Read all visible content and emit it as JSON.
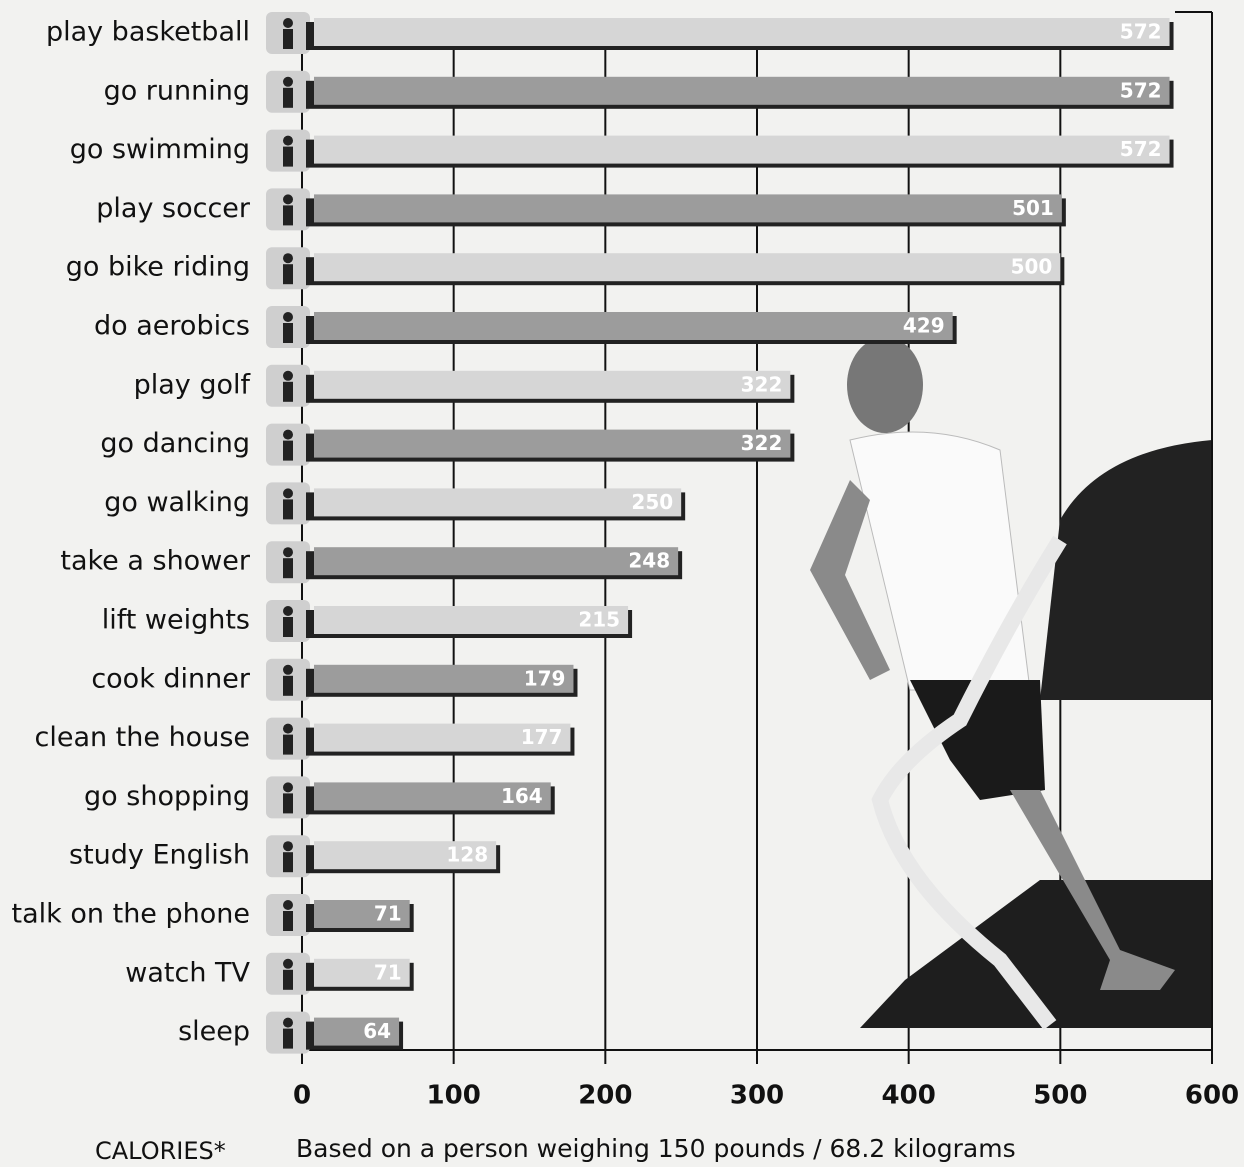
{
  "chart_data": {
    "type": "barh",
    "categories": [
      "play basketball",
      "go running",
      "go swimming",
      "play soccer",
      "go bike riding",
      "do aerobics",
      "play golf",
      "go dancing",
      "go walking",
      "take a shower",
      "lift weights",
      "cook dinner",
      "clean the house",
      "go shopping",
      "study English",
      "talk on the phone",
      "watch TV",
      "sleep"
    ],
    "values": [
      572,
      572,
      572,
      501,
      500,
      429,
      322,
      322,
      250,
      248,
      215,
      179,
      177,
      164,
      128,
      71,
      71,
      64
    ],
    "colors": [
      "#d6d6d6",
      "#9c9c9c"
    ],
    "xlim": [
      0,
      600
    ],
    "xticks": [
      0,
      100,
      200,
      300,
      400,
      500,
      600
    ],
    "grid": true,
    "xlabel": "CALORIES*",
    "note": "Based on a person weighing 150 pounds / 68.2 kilograms"
  }
}
